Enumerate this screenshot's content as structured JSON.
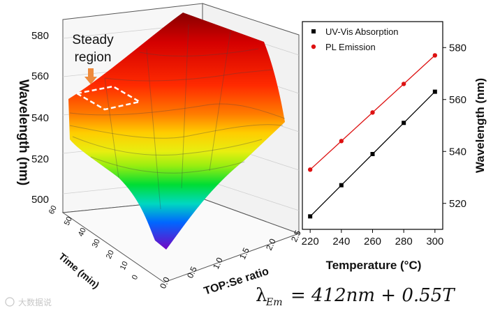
{
  "left_chart": {
    "type": "surface3d",
    "ylabel": "Wavelength (nm)",
    "z_ticks": [
      "580",
      "560",
      "540",
      "520",
      "500"
    ],
    "x_label": "TOP:Se ratio",
    "x_ticks": [
      "0.0",
      "0.5",
      "1.0",
      "1.5",
      "2.0",
      "2.5"
    ],
    "t_label": "Time (min)",
    "t_ticks": [
      "0",
      "10",
      "20",
      "30",
      "40",
      "50",
      "60"
    ],
    "annotation_line1": "Steady",
    "annotation_line2": "region",
    "arrow_color": "#ee8a3c",
    "colors": {
      "top": "#8b0000",
      "mid": "#ffcc00",
      "low": "#00dd33",
      "bottom": "#7a00c0"
    }
  },
  "chart_data": {
    "type": "line",
    "xlabel": "Temperature (°C)",
    "ylabel": "Wavelength (nm)",
    "x": [
      220,
      240,
      260,
      280,
      300
    ],
    "xlim": [
      215,
      305
    ],
    "ylim": [
      510,
      590
    ],
    "x_ticks": [
      "220",
      "240",
      "260",
      "280",
      "300"
    ],
    "y_ticks": [
      "520",
      "540",
      "560",
      "580"
    ],
    "series": [
      {
        "name": "UV-Vis Absorption",
        "color": "#000000",
        "marker": "square",
        "values": [
          515,
          527,
          539,
          551,
          563
        ]
      },
      {
        "name": "PL Emission",
        "color": "#dd1111",
        "marker": "circle",
        "values": [
          533,
          544,
          555,
          566,
          577
        ]
      }
    ],
    "legend": "top-left"
  },
  "formula": {
    "lambda": "λ",
    "subscript": "Em",
    "equals": "=",
    "rhs": "412nm + 0.55T"
  },
  "watermark": "大数据说"
}
